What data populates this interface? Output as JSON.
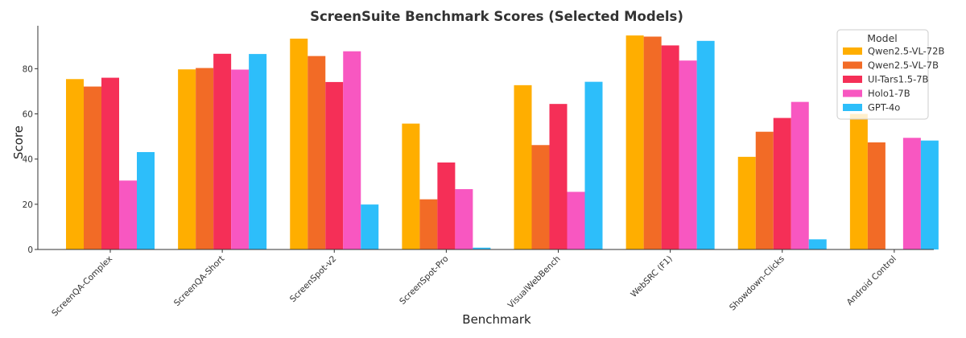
{
  "chart_data": {
    "type": "bar",
    "title": "ScreenSuite Benchmark Scores (Selected Models)",
    "xlabel": "Benchmark",
    "ylabel": "Score",
    "ylim": [
      0,
      99
    ],
    "yticks": [
      0,
      20,
      40,
      60,
      80
    ],
    "grid": false,
    "legend_title": "Model",
    "legend_position": "top-right",
    "categories": [
      "ScreenQA-Complex",
      "ScreenQA-Short",
      "ScreenSpot-v2",
      "ScreenSpot-Pro",
      "VisualWebBench",
      "WebSRC (F1)",
      "Showdown-Clicks",
      "Android Control"
    ],
    "series": [
      {
        "name": "Qwen2.5-VL-72B",
        "color": "#FFAE00",
        "values": [
          75.4,
          79.7,
          93.3,
          55.7,
          72.7,
          94.7,
          41.0,
          60
        ]
      },
      {
        "name": "Qwen2.5-VL-7B",
        "color": "#F26B26",
        "values": [
          72.1,
          80.3,
          85.6,
          22.2,
          46.2,
          94.2,
          52.1,
          47.4
        ]
      },
      {
        "name": "UI-Tars1.5-7B",
        "color": "#F52F57",
        "values": [
          76.0,
          86.6,
          74.1,
          38.5,
          64.4,
          90.3,
          58.2,
          0
        ]
      },
      {
        "name": "Holo1-7B",
        "color": "#F857C1",
        "values": [
          30.5,
          79.6,
          87.7,
          26.7,
          25.5,
          83.6,
          65.3,
          49.4
        ]
      },
      {
        "name": "GPT-4o",
        "color": "#2DBEFA",
        "values": [
          43.1,
          86.5,
          19.9,
          0.8,
          74.2,
          92.3,
          4.5,
          48.2
        ]
      }
    ]
  }
}
